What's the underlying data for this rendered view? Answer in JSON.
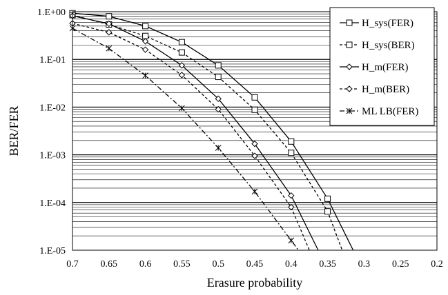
{
  "chart_data": {
    "type": "line",
    "xlabel": "Erasure probability",
    "ylabel": "BER/FER",
    "x_reversed": true,
    "xlim": [
      0.7,
      0.2
    ],
    "ylim": [
      1e-05,
      1
    ],
    "y_scale": "log",
    "grid": true,
    "legend_position": "top-right",
    "x_ticks": [
      "0.7",
      "0.65",
      "0.6",
      "0.55",
      "0.5",
      "0.45",
      "0.4",
      "0.35",
      "0.3",
      "0.25",
      "0.2"
    ],
    "y_ticks": [
      "1.E+00",
      "1.E-01",
      "1.E-02",
      "1.E-03",
      "1.E-04",
      "1.E-05"
    ],
    "series": [
      {
        "name": "H_sys(FER)",
        "marker": "square",
        "line_style": "solid",
        "x": [
          0.7,
          0.65,
          0.6,
          0.55,
          0.5,
          0.45,
          0.4,
          0.35,
          0.315
        ],
        "y": [
          0.93,
          0.8,
          0.5,
          0.23,
          0.075,
          0.016,
          0.0019,
          0.00012,
          1e-05
        ]
      },
      {
        "name": "H_sys(BER)",
        "marker": "square",
        "line_style": "dashed",
        "x": [
          0.7,
          0.65,
          0.6,
          0.55,
          0.5,
          0.45,
          0.4,
          0.35,
          0.33
        ],
        "y": [
          0.85,
          0.54,
          0.31,
          0.14,
          0.043,
          0.0088,
          0.0011,
          6.5e-05,
          1e-05
        ]
      },
      {
        "name": "H_m(FER)",
        "marker": "diamond",
        "line_style": "solid",
        "x": [
          0.7,
          0.65,
          0.6,
          0.55,
          0.5,
          0.45,
          0.4,
          0.363
        ],
        "y": [
          0.82,
          0.56,
          0.24,
          0.075,
          0.015,
          0.0017,
          0.00014,
          1e-05
        ]
      },
      {
        "name": "H_m(BER)",
        "marker": "diamond",
        "line_style": "dashed",
        "x": [
          0.7,
          0.65,
          0.6,
          0.55,
          0.5,
          0.45,
          0.4,
          0.375
        ],
        "y": [
          0.57,
          0.37,
          0.16,
          0.047,
          0.009,
          0.00095,
          8e-05,
          1e-05
        ]
      },
      {
        "name": "ML LB(FER)",
        "marker": "asterisk",
        "line_style": "dashdot",
        "x": [
          0.7,
          0.65,
          0.6,
          0.55,
          0.5,
          0.45,
          0.4,
          0.39
        ],
        "y": [
          0.45,
          0.17,
          0.046,
          0.0095,
          0.0014,
          0.00017,
          1.6e-05,
          1e-05
        ]
      }
    ]
  }
}
